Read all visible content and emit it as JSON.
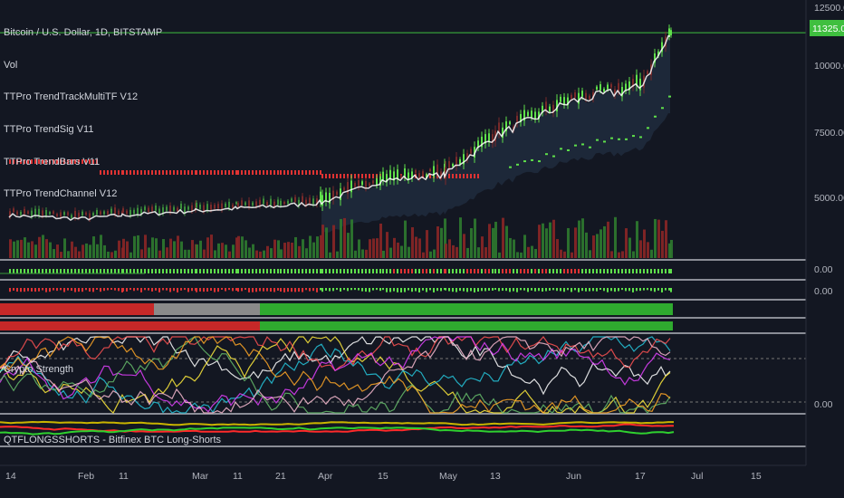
{
  "legend": {
    "symbol": "Bitcoin / U.S. Dollar, 1D, BITSTAMP",
    "indicators": [
      "Vol",
      "TTPro TrendTrackMultiTF V12",
      "TTPro TrendSig V11",
      "TTPro TrendBars V11",
      "TTPro TrendChannel V12"
    ]
  },
  "panes": {
    "pane2_zero": "0.00",
    "pane3_zero": "0.00",
    "crypto_strength_label": "Crypto Strength",
    "crypto_strength_zero": "0.00",
    "bottom_label": "QTFLONGSSHORTS - Bitfinex BTC Long-Shorts"
  },
  "price_axis": {
    "ticks": [
      "12500.00",
      "10000.00",
      "7500.00",
      "5000.00"
    ],
    "last_price": "11325.00"
  },
  "time_axis": {
    "ticks": [
      "14",
      "Feb",
      "11",
      "Mar",
      "11",
      "21",
      "Apr",
      "15",
      "May",
      "13",
      "Jun",
      "17",
      "Jul",
      "15"
    ]
  },
  "colors": {
    "background": "#131722",
    "bull": "#5fe04b",
    "bear": "#e03333",
    "price_line": "#3fbf3f",
    "last_price_badge": "#3fbf3f"
  },
  "chart_data": [
    {
      "type": "line",
      "title": "Bitcoin / U.S. Dollar, 1D, BITSTAMP",
      "x": [
        "Jan 14",
        "Feb 1",
        "Feb 11",
        "Mar 1",
        "Mar 11",
        "Mar 21",
        "Apr 1",
        "Apr 15",
        "May 1",
        "May 13",
        "Jun 1",
        "Jun 17",
        "Jun 24"
      ],
      "series": [
        {
          "name": "Close",
          "values": [
            3600,
            3450,
            3600,
            3800,
            3900,
            4000,
            4150,
            5100,
            5350,
            7000,
            8500,
            9100,
            11325
          ]
        }
      ],
      "ylim": [
        2500,
        12500
      ],
      "y_ticks": [
        5000,
        7500,
        10000,
        12500
      ],
      "last_value": 11325,
      "grid": false
    }
  ]
}
